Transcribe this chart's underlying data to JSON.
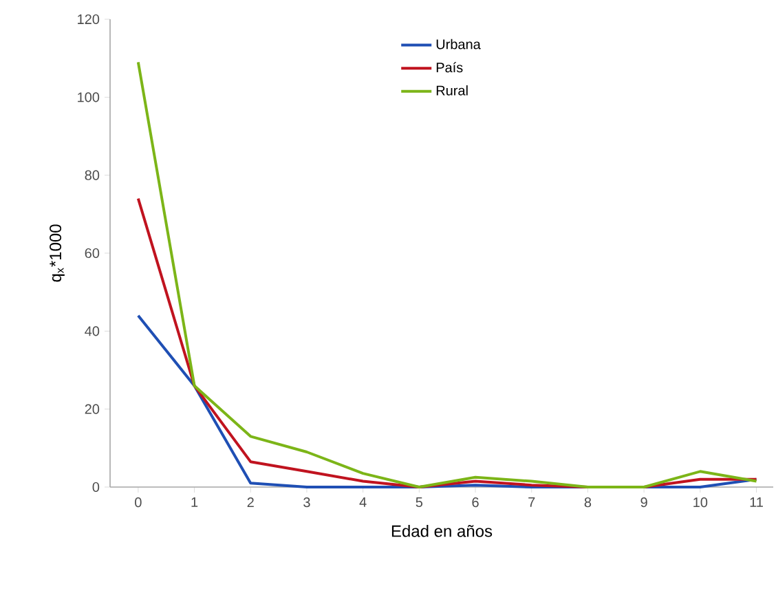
{
  "chart_data": {
    "type": "line",
    "xlabel": "Edad en años",
    "ylabel": "q$_{x}$*1000",
    "categories": [
      "0",
      "1",
      "2",
      "3",
      "4",
      "5",
      "6",
      "7",
      "8",
      "9",
      "10",
      "11"
    ],
    "series": [
      {
        "name": "Urbana",
        "color": "#1f4fb4",
        "values": [
          44,
          26,
          1,
          0,
          0,
          0,
          0.5,
          0,
          0,
          0,
          0,
          2
        ]
      },
      {
        "name": "País",
        "color": "#c0131f",
        "values": [
          74,
          26,
          6.5,
          4,
          1.5,
          0,
          1.5,
          0.5,
          0,
          0,
          2,
          2
        ]
      },
      {
        "name": "Rural",
        "color": "#7cb518",
        "values": [
          109,
          26,
          13,
          9,
          3.5,
          0,
          2.5,
          1.5,
          0,
          0,
          4,
          1.5
        ]
      }
    ],
    "ylim": [
      0,
      120
    ],
    "yticks": [
      0,
      20,
      40,
      60,
      80,
      100,
      120
    ],
    "grid": false,
    "legend": "top",
    "marker": "none",
    "line_style": "solid"
  }
}
